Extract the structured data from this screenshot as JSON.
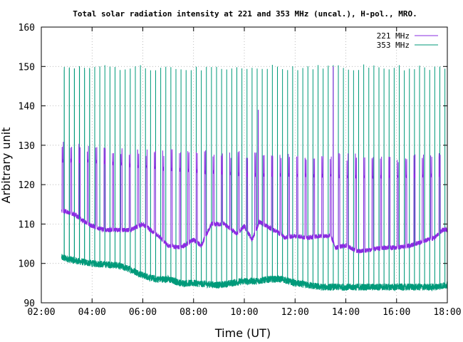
{
  "chart_data": {
    "type": "line",
    "title": "Total solar radiation intensity at 221 and 353 MHz (uncal.), H-pol., MRO.",
    "xlabel": "Time (UT)",
    "ylabel": "Arbitrary unit",
    "xlim": [
      2,
      18
    ],
    "ylim": [
      90,
      160
    ],
    "xticks": [
      2,
      4,
      6,
      8,
      10,
      12,
      14,
      16,
      18
    ],
    "xtick_labels": [
      "02:00",
      "04:00",
      "06:00",
      "08:00",
      "10:00",
      "12:00",
      "14:00",
      "16:00",
      "18:00"
    ],
    "yticks": [
      90,
      100,
      110,
      120,
      130,
      140,
      150,
      160
    ],
    "ytick_labels": [
      "90",
      "100",
      "110",
      "120",
      "130",
      "140",
      "150",
      "160"
    ],
    "grid": true,
    "legend_position": "top-right",
    "series": [
      {
        "name": "221 MHz",
        "color": "#8a2be2",
        "start": 2.8,
        "end": 18.0,
        "baseline": [
          [
            2.8,
            113.5
          ],
          [
            3.3,
            112.5
          ],
          [
            3.6,
            111.0
          ],
          [
            4.0,
            109.5
          ],
          [
            4.5,
            108.5
          ],
          [
            5.0,
            108.5
          ],
          [
            5.5,
            108.5
          ],
          [
            6.0,
            110.0
          ],
          [
            6.3,
            108.5
          ],
          [
            6.7,
            106.5
          ],
          [
            7.0,
            104.5
          ],
          [
            7.5,
            104.0
          ],
          [
            8.0,
            106.0
          ],
          [
            8.3,
            104.5
          ],
          [
            8.7,
            110.0
          ],
          [
            9.2,
            110.0
          ],
          [
            9.7,
            107.5
          ],
          [
            10.0,
            109.5
          ],
          [
            10.3,
            106.0
          ],
          [
            10.6,
            110.5
          ],
          [
            11.0,
            109.0
          ],
          [
            11.3,
            108.0
          ],
          [
            11.6,
            106.5
          ],
          [
            12.0,
            107.0
          ],
          [
            12.5,
            106.5
          ],
          [
            13.0,
            107.0
          ],
          [
            13.4,
            107.0
          ],
          [
            13.6,
            104.0
          ],
          [
            14.0,
            104.5
          ],
          [
            14.5,
            103.0
          ],
          [
            15.0,
            103.5
          ],
          [
            15.5,
            104.0
          ],
          [
            16.0,
            104.0
          ],
          [
            16.5,
            104.5
          ],
          [
            17.0,
            105.5
          ],
          [
            17.5,
            106.5
          ],
          [
            17.8,
            108.5
          ],
          [
            18.0,
            108.5
          ]
        ],
        "noise": 0.6,
        "spike_period": 0.33,
        "spike_phase": 2.82,
        "spike_width": 0.05,
        "spike_plateau": [
          [
            2.8,
            126
          ],
          [
            4.0,
            126
          ],
          [
            6.0,
            124.5
          ],
          [
            8.0,
            123.5
          ],
          [
            10.0,
            122.5
          ],
          [
            12.0,
            122.5
          ],
          [
            14.0,
            122.0
          ],
          [
            16.0,
            122.0
          ],
          [
            18.0,
            122.5
          ]
        ],
        "spike_peaks": [
          [
            2.8,
            131
          ],
          [
            4.0,
            130
          ],
          [
            6.0,
            129
          ],
          [
            8.0,
            129
          ],
          [
            10.0,
            128.5
          ],
          [
            12.0,
            128
          ],
          [
            14.0,
            128
          ],
          [
            16.0,
            127.5
          ],
          [
            18.0,
            128.5
          ]
        ],
        "extra_peaks": [
          [
            10.55,
            139
          ],
          [
            13.5,
            150
          ]
        ]
      },
      {
        "name": "353 MHz",
        "color": "#009a7a",
        "start": 2.8,
        "end": 18.0,
        "baseline": [
          [
            2.8,
            101.5
          ],
          [
            3.5,
            100.5
          ],
          [
            4.0,
            100.0
          ],
          [
            5.0,
            99.5
          ],
          [
            5.5,
            98.5
          ],
          [
            6.0,
            97.0
          ],
          [
            6.5,
            96.0
          ],
          [
            7.0,
            96.0
          ],
          [
            7.5,
            95.0
          ],
          [
            8.0,
            95.0
          ],
          [
            9.0,
            94.5
          ],
          [
            10.0,
            95.5
          ],
          [
            10.5,
            95.5
          ],
          [
            11.0,
            96.0
          ],
          [
            11.5,
            96.0
          ],
          [
            12.0,
            95.0
          ],
          [
            12.5,
            94.5
          ],
          [
            13.0,
            94.0
          ],
          [
            14.0,
            94.0
          ],
          [
            15.0,
            94.0
          ],
          [
            16.0,
            94.0
          ],
          [
            17.0,
            94.0
          ],
          [
            17.5,
            94.0
          ],
          [
            18.0,
            94.5
          ]
        ],
        "noise": 0.9,
        "spike_period": 0.2,
        "spike_phase": 2.9,
        "spike_peak": 150.5
      }
    ]
  }
}
